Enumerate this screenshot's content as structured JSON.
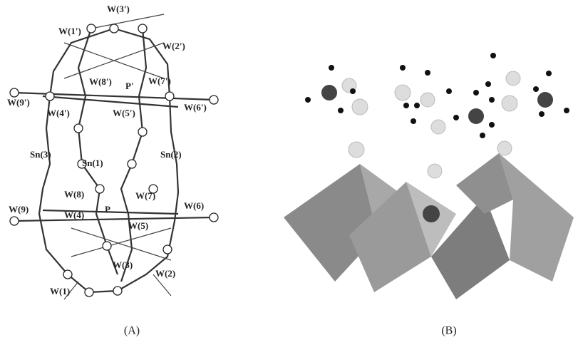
{
  "panel_a": {
    "labels": [
      "W(3')",
      "W(1')",
      "W(2')",
      "W(8')",
      "P'",
      "W(7')",
      "W(9')",
      "W(4')",
      "W(5')",
      "W(6')",
      "Sn(3)",
      "Sn(1)",
      "Sn(2)",
      "W(8)",
      "W(7)",
      "W(9)",
      "W(4)",
      "P",
      "W(6)",
      "W(5)",
      "W(1)",
      "W(3)",
      "W(2)"
    ],
    "caption": "(A)"
  },
  "panel_b": {
    "caption": "(B)"
  }
}
